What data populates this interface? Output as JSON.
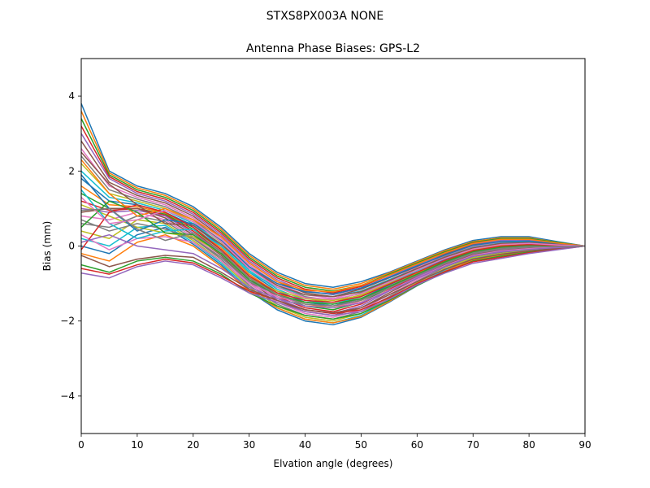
{
  "figure": {
    "suptitle": "STXS8PX003A     NONE"
  },
  "chart_data": {
    "type": "line",
    "title": "Antenna Phase Biases: GPS-L2",
    "xlabel": "Elvation angle (degrees)",
    "ylabel": "Bias (mm)",
    "xlim": [
      0,
      90
    ],
    "ylim": [
      -5,
      5
    ],
    "xticks": [
      0,
      10,
      20,
      30,
      40,
      50,
      60,
      70,
      80,
      90
    ],
    "yticks": [
      -4,
      -2,
      0,
      2,
      4
    ],
    "xtick_labels": [
      "0",
      "10",
      "20",
      "30",
      "40",
      "50",
      "60",
      "70",
      "80",
      "90"
    ],
    "ytick_labels": [
      "−4",
      "−2",
      "0",
      "2",
      "4"
    ],
    "grid": false,
    "legend": false,
    "x": [
      0,
      5,
      10,
      15,
      20,
      25,
      30,
      35,
      40,
      45,
      50,
      55,
      60,
      65,
      70,
      75,
      80,
      85,
      90
    ],
    "colors": [
      "#1f77b4",
      "#ff7f0e",
      "#2ca02c",
      "#d62728",
      "#9467bd",
      "#8c564b",
      "#e377c2",
      "#7f7f7f",
      "#bcbd22",
      "#17becf"
    ],
    "series": [
      {
        "values": [
          3.8,
          2.0,
          1.6,
          1.4,
          1.05,
          0.5,
          -0.2,
          -0.7,
          -1.0,
          -1.1,
          -0.95,
          -0.7,
          -0.4,
          -0.1,
          0.15,
          0.25,
          0.25,
          0.12,
          0.0
        ]
      },
      {
        "values": [
          3.6,
          1.95,
          1.55,
          1.35,
          1.0,
          0.45,
          -0.25,
          -0.75,
          -1.05,
          -1.15,
          -1.0,
          -0.72,
          -0.42,
          -0.12,
          0.12,
          0.22,
          0.22,
          0.1,
          0.0
        ]
      },
      {
        "values": [
          3.4,
          1.9,
          1.5,
          1.3,
          0.95,
          0.4,
          -0.3,
          -0.8,
          -1.1,
          -1.2,
          -1.05,
          -0.75,
          -0.45,
          -0.15,
          0.1,
          0.2,
          0.2,
          0.1,
          0.0
        ]
      },
      {
        "values": [
          3.2,
          1.85,
          1.45,
          1.25,
          0.9,
          0.35,
          -0.35,
          -0.85,
          -1.15,
          -1.25,
          -1.08,
          -0.78,
          -0.48,
          -0.18,
          0.08,
          0.18,
          0.18,
          0.08,
          0.0
        ]
      },
      {
        "values": [
          3.0,
          1.8,
          1.4,
          1.2,
          0.85,
          0.3,
          -0.4,
          -0.9,
          -1.2,
          -1.3,
          -1.12,
          -0.82,
          -0.5,
          -0.2,
          0.05,
          0.15,
          0.15,
          0.07,
          0.0
        ]
      },
      {
        "values": [
          2.8,
          1.7,
          1.35,
          1.15,
          0.8,
          0.25,
          -0.45,
          -0.95,
          -1.25,
          -1.35,
          -1.15,
          -0.85,
          -0.55,
          -0.22,
          0.03,
          0.12,
          0.13,
          0.06,
          0.0
        ]
      },
      {
        "values": [
          2.6,
          1.6,
          1.3,
          1.1,
          0.75,
          0.2,
          -0.5,
          -1.0,
          -1.3,
          -1.4,
          -1.2,
          -0.9,
          -0.58,
          -0.25,
          0.0,
          0.1,
          0.12,
          0.05,
          0.0
        ]
      },
      {
        "values": [
          2.4,
          1.5,
          1.25,
          1.05,
          0.7,
          0.15,
          -0.55,
          -1.05,
          -1.35,
          -1.45,
          -1.25,
          -0.93,
          -0.6,
          -0.28,
          -0.03,
          0.08,
          0.1,
          0.05,
          0.0
        ]
      },
      {
        "values": [
          2.2,
          1.4,
          1.2,
          1.0,
          0.65,
          0.1,
          -0.6,
          -1.1,
          -1.4,
          -1.5,
          -1.3,
          -0.97,
          -0.63,
          -0.3,
          -0.05,
          0.05,
          0.08,
          0.04,
          0.0
        ]
      },
      {
        "values": [
          2.0,
          1.3,
          1.15,
          0.95,
          0.6,
          0.05,
          -0.65,
          -1.15,
          -1.45,
          -1.55,
          -1.35,
          -1.0,
          -0.66,
          -0.33,
          -0.08,
          0.03,
          0.06,
          0.03,
          0.0
        ]
      },
      {
        "values": [
          1.8,
          1.2,
          1.1,
          0.9,
          0.55,
          0.0,
          -0.7,
          -1.2,
          -1.5,
          -1.6,
          -1.4,
          -1.04,
          -0.7,
          -0.36,
          -0.1,
          0.0,
          0.04,
          0.02,
          0.0
        ]
      },
      {
        "values": [
          1.6,
          1.1,
          1.05,
          0.88,
          0.5,
          -0.05,
          -0.75,
          -1.25,
          -1.55,
          -1.65,
          -1.45,
          -1.08,
          -0.73,
          -0.38,
          -0.13,
          -0.02,
          0.02,
          0.01,
          0.0
        ]
      },
      {
        "values": [
          1.4,
          1.0,
          1.0,
          0.85,
          0.45,
          -0.1,
          -0.8,
          -1.3,
          -1.6,
          -1.7,
          -1.5,
          -1.12,
          -0.76,
          -0.41,
          -0.15,
          -0.05,
          0.0,
          0.0,
          0.0
        ]
      },
      {
        "values": [
          1.2,
          0.95,
          1.0,
          0.82,
          0.4,
          -0.15,
          -0.85,
          -1.35,
          -1.65,
          -1.75,
          -1.55,
          -1.16,
          -0.8,
          -0.44,
          -0.18,
          -0.07,
          -0.02,
          0.0,
          0.0
        ]
      },
      {
        "values": [
          1.0,
          0.9,
          0.95,
          0.8,
          0.35,
          -0.2,
          -0.9,
          -1.4,
          -1.7,
          -1.8,
          -1.6,
          -1.2,
          -0.83,
          -0.47,
          -0.2,
          -0.1,
          -0.04,
          -0.01,
          0.0
        ]
      },
      {
        "values": [
          0.9,
          1.0,
          1.0,
          0.75,
          0.3,
          -0.25,
          -0.95,
          -1.45,
          -1.75,
          -1.85,
          -1.65,
          -1.25,
          -0.86,
          -0.5,
          -0.23,
          -0.12,
          -0.06,
          -0.02,
          0.0
        ]
      },
      {
        "values": [
          0.8,
          0.7,
          0.9,
          0.7,
          0.25,
          -0.3,
          -1.0,
          -1.5,
          -1.8,
          -1.9,
          -1.7,
          -1.3,
          -0.9,
          -0.53,
          -0.26,
          -0.15,
          -0.08,
          -0.03,
          0.0
        ]
      },
      {
        "values": [
          0.6,
          0.5,
          0.8,
          0.65,
          0.2,
          -0.35,
          -1.05,
          -1.55,
          -1.85,
          -1.95,
          -1.75,
          -1.35,
          -0.94,
          -0.56,
          -0.28,
          -0.17,
          -0.1,
          -0.04,
          0.0
        ]
      },
      {
        "values": [
          0.4,
          0.2,
          0.7,
          0.6,
          0.15,
          -0.4,
          -1.1,
          -1.6,
          -1.9,
          -2.0,
          -1.8,
          -1.4,
          -0.98,
          -0.6,
          -0.31,
          -0.2,
          -0.12,
          -0.05,
          0.0
        ]
      },
      {
        "values": [
          0.2,
          0.0,
          0.5,
          0.55,
          0.1,
          -0.45,
          -1.15,
          -1.65,
          -1.95,
          -2.05,
          -1.85,
          -1.45,
          -1.02,
          -0.64,
          -0.34,
          -0.22,
          -0.13,
          -0.06,
          0.0
        ]
      },
      {
        "values": [
          0.0,
          -0.2,
          0.3,
          0.5,
          0.05,
          -0.5,
          -1.2,
          -1.7,
          -2.0,
          -2.1,
          -1.9,
          -1.5,
          -1.06,
          -0.68,
          -0.38,
          -0.25,
          -0.15,
          -0.07,
          0.0
        ]
      },
      {
        "values": [
          -0.2,
          -0.4,
          0.1,
          0.3,
          0.0,
          -0.55,
          -1.2,
          -1.65,
          -1.95,
          -2.05,
          -1.88,
          -1.48,
          -1.05,
          -0.67,
          -0.37,
          -0.24,
          -0.14,
          -0.07,
          0.0
        ]
      },
      {
        "values": [
          -0.5,
          -0.7,
          -0.4,
          -0.3,
          -0.4,
          -0.75,
          -1.25,
          -1.6,
          -1.85,
          -1.95,
          -1.8,
          -1.45,
          -1.05,
          -0.7,
          -0.4,
          -0.27,
          -0.16,
          -0.08,
          0.0
        ]
      },
      {
        "values": [
          -0.6,
          -0.75,
          -0.5,
          -0.35,
          -0.45,
          -0.8,
          -1.2,
          -1.45,
          -1.7,
          -1.8,
          -1.7,
          -1.38,
          -1.0,
          -0.68,
          -0.42,
          -0.3,
          -0.18,
          -0.09,
          0.0
        ]
      },
      {
        "values": [
          -0.72,
          -0.85,
          -0.55,
          -0.4,
          -0.5,
          -0.85,
          -1.25,
          -1.5,
          -1.75,
          -1.85,
          -1.75,
          -1.42,
          -1.03,
          -0.72,
          -0.46,
          -0.33,
          -0.2,
          -0.1,
          0.0
        ]
      },
      {
        "values": [
          -0.25,
          -0.55,
          -0.35,
          -0.25,
          -0.3,
          -0.7,
          -1.15,
          -1.45,
          -1.7,
          -1.78,
          -1.65,
          -1.3,
          -0.95,
          -0.62,
          -0.35,
          -0.22,
          -0.13,
          -0.06,
          0.0
        ]
      },
      {
        "values": [
          0.3,
          -0.1,
          0.2,
          0.25,
          0.1,
          -0.4,
          -1.0,
          -1.35,
          -1.55,
          -1.6,
          -1.5,
          -1.18,
          -0.85,
          -0.52,
          -0.25,
          -0.13,
          -0.07,
          -0.03,
          0.0
        ]
      },
      {
        "values": [
          0.7,
          0.4,
          0.6,
          0.45,
          0.2,
          -0.3,
          -0.95,
          -1.3,
          -1.5,
          -1.55,
          -1.42,
          -1.1,
          -0.78,
          -0.45,
          -0.18,
          -0.05,
          0.0,
          0.0,
          0.0
        ]
      },
      {
        "values": [
          1.1,
          0.8,
          0.5,
          0.35,
          0.25,
          -0.2,
          -0.85,
          -1.2,
          -1.4,
          -1.45,
          -1.32,
          -1.0,
          -0.7,
          -0.38,
          -0.1,
          0.02,
          0.05,
          0.02,
          0.0
        ]
      },
      {
        "values": [
          1.5,
          0.6,
          0.2,
          0.4,
          0.45,
          0.0,
          -0.7,
          -1.1,
          -1.3,
          -1.35,
          -1.2,
          -0.9,
          -0.6,
          -0.3,
          -0.04,
          0.08,
          0.1,
          0.05,
          0.0
        ]
      },
      {
        "values": [
          1.9,
          1.0,
          0.4,
          0.7,
          0.6,
          0.15,
          -0.55,
          -1.0,
          -1.22,
          -1.28,
          -1.12,
          -0.84,
          -0.53,
          -0.24,
          0.02,
          0.12,
          0.13,
          0.06,
          0.0
        ]
      },
      {
        "values": [
          2.3,
          1.4,
          0.8,
          1.0,
          0.7,
          0.25,
          -0.45,
          -0.95,
          -1.18,
          -1.22,
          -1.05,
          -0.78,
          -0.48,
          -0.18,
          0.07,
          0.18,
          0.18,
          0.08,
          0.0
        ]
      },
      {
        "values": [
          0.5,
          1.2,
          0.9,
          0.35,
          0.3,
          -0.2,
          -0.9,
          -1.3,
          -1.5,
          -1.55,
          -1.4,
          -1.08,
          -0.75,
          -0.42,
          -0.15,
          -0.03,
          0.02,
          0.01,
          0.0
        ]
      },
      {
        "values": [
          -0.1,
          0.9,
          1.1,
          0.9,
          0.5,
          -0.1,
          -0.8,
          -1.25,
          -1.45,
          -1.5,
          -1.35,
          -1.02,
          -0.7,
          -0.38,
          -0.12,
          0.0,
          0.04,
          0.02,
          0.0
        ]
      },
      {
        "values": [
          0.1,
          0.3,
          0.0,
          -0.1,
          -0.2,
          -0.6,
          -1.1,
          -1.4,
          -1.6,
          -1.65,
          -1.52,
          -1.2,
          -0.86,
          -0.54,
          -0.27,
          -0.15,
          -0.09,
          -0.04,
          0.0
        ]
      },
      {
        "values": [
          2.5,
          1.65,
          1.1,
          0.6,
          0.55,
          0.05,
          -0.6,
          -1.05,
          -1.3,
          -1.35,
          -1.22,
          -0.92,
          -0.6,
          -0.3,
          -0.05,
          0.07,
          0.09,
          0.04,
          0.0
        ]
      },
      {
        "values": [
          1.3,
          0.6,
          0.7,
          0.95,
          0.65,
          0.12,
          -0.6,
          -1.1,
          -1.38,
          -1.42,
          -1.27,
          -0.96,
          -0.64,
          -0.33,
          -0.08,
          0.04,
          0.07,
          0.03,
          0.0
        ]
      },
      {
        "values": [
          0.95,
          1.0,
          0.45,
          0.15,
          0.35,
          -0.15,
          -0.85,
          -1.3,
          -1.55,
          -1.6,
          -1.45,
          -1.12,
          -0.79,
          -0.46,
          -0.2,
          -0.08,
          -0.03,
          -0.01,
          0.0
        ]
      }
    ]
  }
}
